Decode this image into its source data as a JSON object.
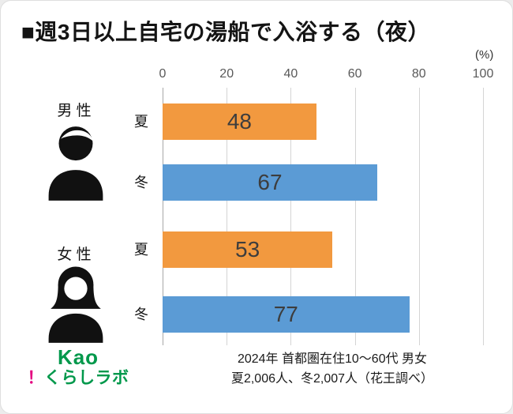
{
  "header": {
    "title": "■週3日以上自宅の湯船で入浴する（夜）"
  },
  "chart_data": {
    "type": "bar",
    "orientation": "horizontal",
    "title": "週3日以上自宅の湯船で入浴する（夜）",
    "unit_label": "(%)",
    "xlim": [
      0,
      100
    ],
    "ticks": [
      0,
      20,
      40,
      60,
      80,
      100
    ],
    "grid": true,
    "legend_position": "none",
    "groups": [
      {
        "label": "男 性",
        "icon": "male-person-icon"
      },
      {
        "label": "女 性",
        "icon": "female-person-icon"
      }
    ],
    "rows": [
      {
        "group": "男性",
        "season": "夏",
        "value": 48,
        "color": "#F2993F"
      },
      {
        "group": "男性",
        "season": "冬",
        "value": 67,
        "color": "#5B9BD5"
      },
      {
        "group": "女性",
        "season": "夏",
        "value": 53,
        "color": "#F2993F"
      },
      {
        "group": "女性",
        "season": "冬",
        "value": 77,
        "color": "#5B9BD5"
      }
    ]
  },
  "footer": {
    "source_line1": "2024年 首都圏在住10～60代 男女",
    "source_line2": "夏2,006人、冬2,007人（花王調べ）"
  },
  "logo": {
    "brand": "Kao",
    "mark": "！",
    "name": "くらしラボ",
    "brand_color": "#00984B",
    "mark_color": "#E4007F"
  }
}
